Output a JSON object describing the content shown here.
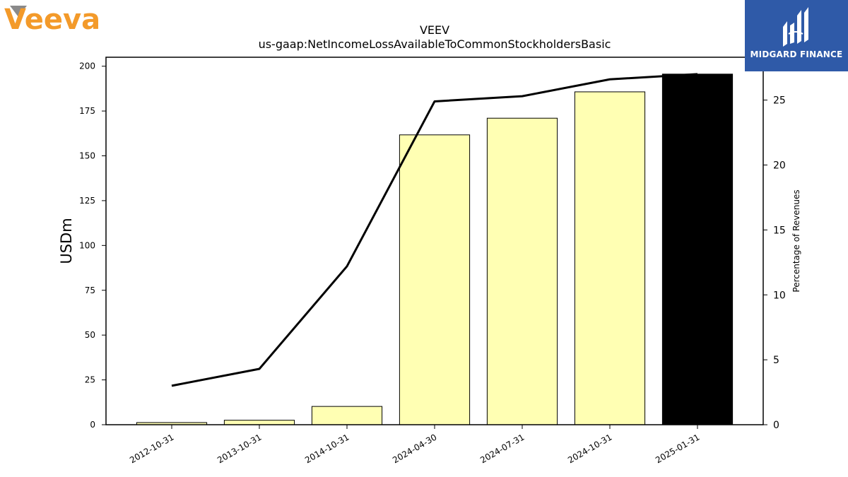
{
  "branding": {
    "left_logo_text": "Veeva",
    "left_logo_color": "#f39a2a",
    "right_logo_text": "MIDGARD FINANCE",
    "right_logo_bg": "#2f5aa8"
  },
  "chart_data": {
    "type": "bar",
    "title": "VEEV",
    "subtitle": "us-gaap:NetIncomeLossAvailableToCommonStockholdersBasic",
    "ylabel": "USDm",
    "y2label": "Percentage of Revenues",
    "categories": [
      "2012-10-31",
      "2013-10-31",
      "2014-10-31",
      "2024-04-30",
      "2024-07-31",
      "2024-10-31",
      "2025-01-31"
    ],
    "bar_values": [
      1.2,
      2.5,
      10.2,
      161.7,
      171.0,
      185.7,
      195.6
    ],
    "bar_colors": [
      "#ffffb3",
      "#ffffb3",
      "#ffffb3",
      "#ffffb3",
      "#ffffb3",
      "#ffffb3",
      "#000000"
    ],
    "line_values_pct": [
      3.0,
      4.3,
      12.2,
      24.9,
      25.3,
      26.6,
      27.0
    ],
    "line_color": "#000000",
    "ylim": [
      0,
      205
    ],
    "y2lim": [
      0,
      28.3
    ],
    "yticks": [
      0,
      25,
      50,
      75,
      100,
      125,
      150,
      175,
      200
    ],
    "y2ticks": [
      0,
      5,
      10,
      15,
      20,
      25
    ],
    "grid": false,
    "legend": "none"
  }
}
